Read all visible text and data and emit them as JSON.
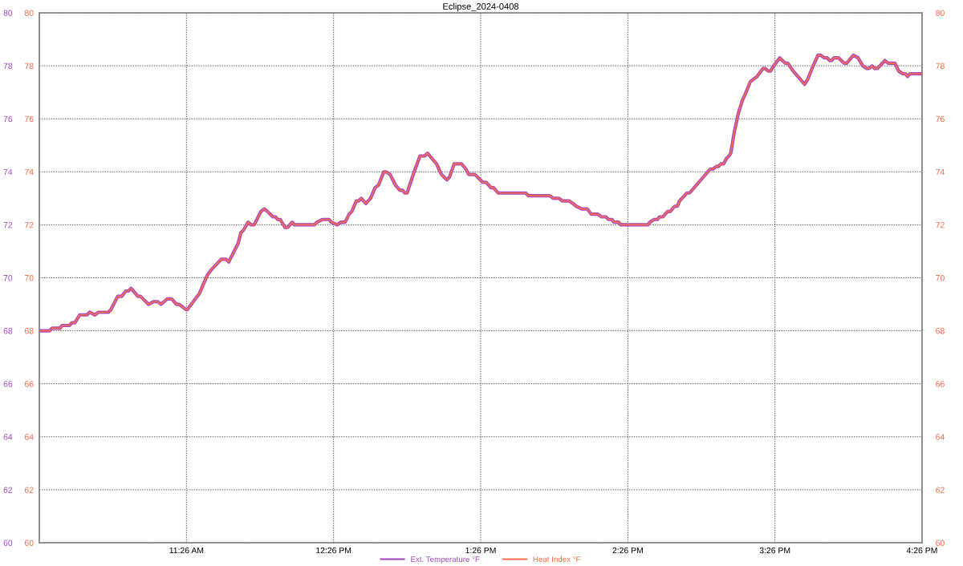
{
  "chart_data": {
    "type": "line",
    "title": "Eclipse_2024-0408",
    "x": [
      10.439,
      10.503,
      10.521,
      10.575,
      10.588,
      10.639,
      10.653,
      10.675,
      10.708,
      10.757,
      10.775,
      10.811,
      10.835,
      10.902,
      10.92,
      10.966,
      10.993,
      11.021,
      11.039,
      11.057,
      11.103,
      11.121,
      11.175,
      11.212,
      11.239,
      11.261,
      11.302,
      11.333,
      11.366,
      11.384,
      11.43,
      11.439,
      11.493,
      11.521,
      11.575,
      11.602,
      11.67,
      11.703,
      11.721,
      11.739,
      11.785,
      11.803,
      11.821,
      11.853,
      11.872,
      11.894,
      11.939,
      11.962,
      11.984,
      12.021,
      12.039,
      12.053,
      12.071,
      12.103,
      12.121,
      12.152,
      12.166,
      12.303,
      12.321,
      12.357,
      12.403,
      12.417,
      12.457,
      12.484,
      12.512,
      12.539,
      12.557,
      12.588,
      12.603,
      12.621,
      12.653,
      12.685,
      12.715,
      12.739,
      12.775,
      12.788,
      12.817,
      12.854,
      12.884,
      12.903,
      12.917,
      12.933,
      12.957,
      12.981,
      13.021,
      13.053,
      13.072,
      13.102,
      13.133,
      13.166,
      13.203,
      13.221,
      13.253,
      13.303,
      13.333,
      13.352,
      13.394,
      13.448,
      13.472,
      13.503,
      13.521,
      13.552,
      13.739,
      13.757,
      13.903,
      13.926,
      13.966,
      13.988,
      14.035,
      14.061,
      14.084,
      14.121,
      14.157,
      14.185,
      14.23,
      14.253,
      14.284,
      14.302,
      14.326,
      14.339,
      14.37,
      14.384,
      14.57,
      14.584,
      14.612,
      14.635,
      14.648,
      14.672,
      14.703,
      14.721,
      14.752,
      14.77,
      14.785,
      14.835,
      14.853,
      14.993,
      15.011,
      15.035,
      15.048,
      15.066,
      15.085,
      15.103,
      15.121,
      15.133,
      15.157,
      15.184,
      15.212,
      15.229,
      15.266,
      15.312,
      15.352,
      15.366,
      15.388,
      15.403,
      15.424,
      15.439,
      15.466,
      15.503,
      15.521,
      15.557,
      15.635,
      15.657,
      15.693,
      15.726,
      15.744,
      15.77,
      15.788,
      15.806,
      15.817,
      15.835,
      15.866,
      15.903,
      15.921,
      15.966,
      15.999,
      16.03,
      16.057,
      16.072,
      16.094,
      16.112,
      16.13,
      16.181,
      16.203,
      16.248,
      16.275,
      16.303,
      16.321,
      16.334,
      16.352,
      16.43
    ],
    "series": [
      {
        "name": "Ext. Temperature °F",
        "color": "#a34cbf",
        "values": [
          68.0,
          68.0,
          68.1,
          68.1,
          68.2,
          68.2,
          68.3,
          68.3,
          68.6,
          68.6,
          68.7,
          68.6,
          68.7,
          68.7,
          68.8,
          69.3,
          69.3,
          69.5,
          69.5,
          69.6,
          69.3,
          69.3,
          69.0,
          69.1,
          69.1,
          69.0,
          69.2,
          69.2,
          69.0,
          69.0,
          68.8,
          68.8,
          69.2,
          69.4,
          70.1,
          70.3,
          70.7,
          70.7,
          70.6,
          70.8,
          71.3,
          71.7,
          71.8,
          72.1,
          72.0,
          72.0,
          72.5,
          72.6,
          72.5,
          72.3,
          72.3,
          72.2,
          72.2,
          71.9,
          71.9,
          72.1,
          72.0,
          72.0,
          72.1,
          72.2,
          72.2,
          72.1,
          72.0,
          72.1,
          72.1,
          72.4,
          72.5,
          72.9,
          72.9,
          73.0,
          72.8,
          73.0,
          73.4,
          73.5,
          74.0,
          74.0,
          73.9,
          73.5,
          73.3,
          73.3,
          73.2,
          73.2,
          73.6,
          74.0,
          74.6,
          74.6,
          74.7,
          74.5,
          74.3,
          73.9,
          73.7,
          73.8,
          74.3,
          74.3,
          74.1,
          73.9,
          73.9,
          73.6,
          73.6,
          73.4,
          73.4,
          73.2,
          73.2,
          73.1,
          73.1,
          73.0,
          73.0,
          72.9,
          72.9,
          72.8,
          72.7,
          72.6,
          72.6,
          72.4,
          72.4,
          72.3,
          72.3,
          72.2,
          72.2,
          72.1,
          72.1,
          72.0,
          72.0,
          72.1,
          72.2,
          72.2,
          72.3,
          72.3,
          72.5,
          72.5,
          72.7,
          72.7,
          72.9,
          73.2,
          73.2,
          74.1,
          74.1,
          74.2,
          74.2,
          74.3,
          74.3,
          74.5,
          74.6,
          74.7,
          75.5,
          76.2,
          76.7,
          76.9,
          77.4,
          77.6,
          77.9,
          77.9,
          77.8,
          77.8,
          78.0,
          78.1,
          78.3,
          78.1,
          78.1,
          77.8,
          77.3,
          77.5,
          78.0,
          78.4,
          78.4,
          78.3,
          78.3,
          78.2,
          78.2,
          78.3,
          78.3,
          78.1,
          78.1,
          78.4,
          78.3,
          78.0,
          77.9,
          77.9,
          78.0,
          77.9,
          77.9,
          78.2,
          78.1,
          78.1,
          77.8,
          77.7,
          77.7,
          77.6,
          77.7,
          77.7
        ]
      },
      {
        "name": "Heat Index °F",
        "color": "#ff6a4a",
        "axis": "y2",
        "values": [
          68.0,
          68.0,
          68.1,
          68.1,
          68.2,
          68.2,
          68.3,
          68.3,
          68.6,
          68.6,
          68.7,
          68.6,
          68.7,
          68.7,
          68.8,
          69.3,
          69.3,
          69.5,
          69.5,
          69.6,
          69.3,
          69.3,
          69.0,
          69.1,
          69.1,
          69.0,
          69.2,
          69.2,
          69.0,
          69.0,
          68.8,
          68.8,
          69.2,
          69.4,
          70.1,
          70.3,
          70.7,
          70.7,
          70.6,
          70.8,
          71.3,
          71.7,
          71.8,
          72.1,
          72.0,
          72.0,
          72.5,
          72.6,
          72.5,
          72.3,
          72.3,
          72.2,
          72.2,
          71.9,
          71.9,
          72.1,
          72.0,
          72.0,
          72.1,
          72.2,
          72.2,
          72.1,
          72.0,
          72.1,
          72.1,
          72.4,
          72.5,
          72.9,
          72.9,
          73.0,
          72.8,
          73.0,
          73.4,
          73.5,
          74.0,
          74.0,
          73.9,
          73.5,
          73.3,
          73.3,
          73.2,
          73.2,
          73.6,
          74.0,
          74.6,
          74.6,
          74.7,
          74.5,
          74.3,
          73.9,
          73.7,
          73.8,
          74.3,
          74.3,
          74.1,
          73.9,
          73.9,
          73.6,
          73.6,
          73.4,
          73.4,
          73.2,
          73.2,
          73.1,
          73.1,
          73.0,
          73.0,
          72.9,
          72.9,
          72.8,
          72.7,
          72.6,
          72.6,
          72.4,
          72.4,
          72.3,
          72.3,
          72.2,
          72.2,
          72.1,
          72.1,
          72.0,
          72.0,
          72.1,
          72.2,
          72.2,
          72.3,
          72.3,
          72.5,
          72.5,
          72.7,
          72.7,
          72.9,
          73.2,
          73.2,
          74.1,
          74.1,
          74.2,
          74.2,
          74.3,
          74.3,
          74.5,
          74.6,
          74.7,
          75.5,
          76.2,
          76.7,
          76.9,
          77.4,
          77.6,
          77.9,
          77.9,
          77.8,
          77.8,
          78.0,
          78.1,
          78.3,
          78.1,
          78.1,
          77.8,
          77.3,
          77.5,
          78.0,
          78.4,
          78.4,
          78.3,
          78.3,
          78.2,
          78.2,
          78.3,
          78.3,
          78.1,
          78.1,
          78.4,
          78.3,
          78.0,
          77.9,
          77.9,
          78.0,
          77.9,
          77.9,
          78.2,
          78.1,
          78.1,
          77.8,
          77.7,
          77.7,
          77.6,
          77.7,
          77.7
        ]
      }
    ],
    "xlim": [
      10.4333,
      16.4333
    ],
    "xticks": [
      {
        "value": 11.4333,
        "label": "11:26 AM"
      },
      {
        "value": 12.4333,
        "label": "12:26 PM"
      },
      {
        "value": 13.4333,
        "label": "1:26 PM"
      },
      {
        "value": 14.4333,
        "label": "2:26 PM"
      },
      {
        "value": 15.4333,
        "label": "3:26 PM"
      },
      {
        "value": 16.4333,
        "label": "4:26 PM"
      }
    ],
    "ylim": [
      60,
      80
    ],
    "yticks": [
      60,
      62,
      64,
      66,
      68,
      70,
      72,
      74,
      76,
      78,
      80
    ],
    "y2lim": [
      60,
      80
    ],
    "y2ticks": [
      60,
      62,
      64,
      66,
      68,
      70,
      72,
      74,
      76,
      78,
      80
    ],
    "y3lim": [
      60,
      80
    ],
    "y3ticks": [
      60,
      62,
      64,
      66,
      68,
      70,
      72,
      74,
      76,
      78,
      80
    ],
    "grid": true,
    "legend": "bottom",
    "line_style": "solid",
    "marker": "none"
  }
}
